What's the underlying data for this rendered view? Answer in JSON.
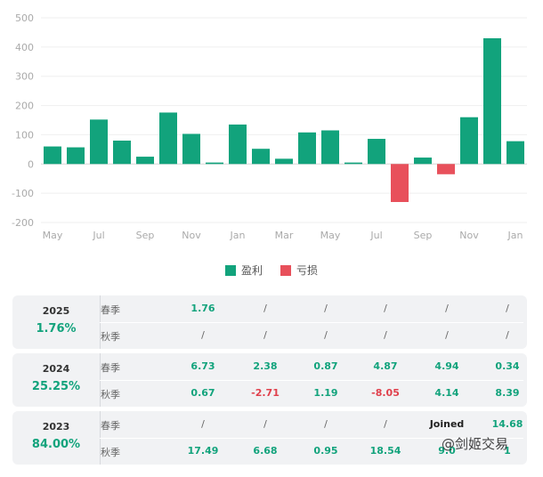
{
  "chart_data": {
    "type": "bar",
    "y_ticks": [
      500,
      400,
      300,
      200,
      100,
      0,
      -100,
      -200
    ],
    "ylim": [
      -200,
      500
    ],
    "x_tick_labels": [
      "May",
      "Jul",
      "Sep",
      "Nov",
      "Jan",
      "Mar",
      "May",
      "Jul",
      "Sep",
      "Nov",
      "Jan"
    ],
    "values": [
      60,
      57,
      152,
      80,
      25,
      176,
      103,
      5,
      135,
      52,
      18,
      108,
      115,
      5,
      86,
      -130,
      22,
      -35,
      160,
      430,
      78
    ],
    "colors": {
      "profit": "#12a37c",
      "loss": "#e8505b"
    },
    "legend": [
      {
        "label": "盈利",
        "color": "#12a37c"
      },
      {
        "label": "亏损",
        "color": "#e8505b"
      }
    ]
  },
  "cards": [
    {
      "year": "2025",
      "pct": "1.76%",
      "rows": [
        {
          "season": "春季",
          "cells": [
            "1.76",
            "/",
            "/",
            "/",
            "/",
            "/"
          ]
        },
        {
          "season": "秋季",
          "cells": [
            "/",
            "/",
            "/",
            "/",
            "/",
            "/"
          ]
        }
      ]
    },
    {
      "year": "2024",
      "pct": "25.25%",
      "rows": [
        {
          "season": "春季",
          "cells": [
            "6.73",
            "2.38",
            "0.87",
            "4.87",
            "4.94",
            "0.34"
          ]
        },
        {
          "season": "秋季",
          "cells": [
            "0.67",
            "-2.71",
            "1.19",
            "-8.05",
            "4.14",
            "8.39"
          ]
        }
      ]
    },
    {
      "year": "2023",
      "pct": "84.00%",
      "rows": [
        {
          "season": "春季",
          "cells": [
            "/",
            "/",
            "/",
            "/",
            "Joined",
            "14.68"
          ]
        },
        {
          "season": "秋季",
          "cells": [
            "17.49",
            "6.68",
            "0.95",
            "18.54",
            "9.0",
            "1"
          ]
        }
      ]
    }
  ],
  "watermark": "@剑姬交易"
}
